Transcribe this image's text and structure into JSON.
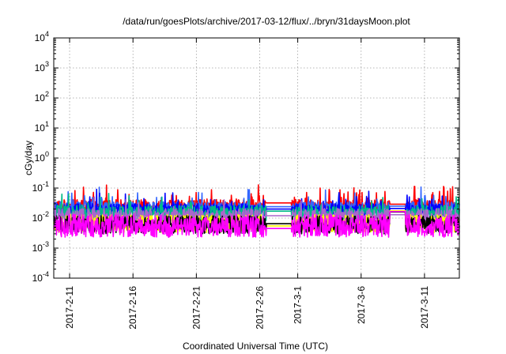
{
  "chart_data": {
    "type": "line",
    "title": "/data/run/goesPlots/archive/2017-03-12/flux/../bryn/31daysMoon.plot",
    "xlabel": "Coordinated Universal Time (UTC)",
    "ylabel": "cGy/day",
    "yscale": "log",
    "grid": true,
    "legend": "none",
    "ylim": [
      0.0001,
      10000
    ],
    "y_ticks": [
      {
        "base": "10",
        "exp": "-4",
        "value": 0.0001
      },
      {
        "base": "10",
        "exp": "-3",
        "value": 0.001
      },
      {
        "base": "10",
        "exp": "-2",
        "value": 0.01
      },
      {
        "base": "10",
        "exp": "-1",
        "value": 0.1
      },
      {
        "base": "10",
        "exp": "0",
        "value": 1
      },
      {
        "base": "10",
        "exp": "1",
        "value": 10
      },
      {
        "base": "10",
        "exp": "2",
        "value": 100
      },
      {
        "base": "10",
        "exp": "3",
        "value": 1000
      },
      {
        "base": "10",
        "exp": "4",
        "value": 10000
      }
    ],
    "xlim": [
      "2017-02-09T18:00",
      "2017-03-13T18:00"
    ],
    "x_ticks": [
      "2017-2-11",
      "2017-2-16",
      "2017-2-21",
      "2017-2-26",
      "2017-3-1",
      "2017-3-6",
      "2017-3-11"
    ],
    "x_tick_dates": [
      "2017-02-11",
      "2017-02-16",
      "2017-02-21",
      "2017-02-26",
      "2017-03-01",
      "2017-03-06",
      "2017-03-11"
    ],
    "series": [
      {
        "color": "#ff0000",
        "baseline": 0.025,
        "noise": 0.22,
        "spikes": 0.06,
        "gaps": [
          {
            "from": "2017-02-26T12:00",
            "to": "2017-02-28T12:00",
            "value": 0.032
          },
          {
            "from": "2017-03-08T06:00",
            "to": "2017-03-09T12:00",
            "value": 0.029
          }
        ]
      },
      {
        "color": "#3366ff",
        "baseline": 0.021,
        "noise": 0.22,
        "spikes": 0.05,
        "gaps": [
          {
            "from": "2017-02-26T12:00",
            "to": "2017-02-28T12:00",
            "value": 0.024
          },
          {
            "from": "2017-03-08T06:00",
            "to": "2017-03-09T12:00",
            "value": 0.025
          }
        ]
      },
      {
        "color": "#0000ff",
        "baseline": 0.019,
        "noise": 0.2,
        "spikes": 0.04,
        "gaps": [
          {
            "from": "2017-02-26T12:00",
            "to": "2017-02-28T12:00",
            "value": 0.02
          },
          {
            "from": "2017-03-08T06:00",
            "to": "2017-03-09T12:00",
            "value": 0.021
          }
        ]
      },
      {
        "color": "#00bb88",
        "baseline": 0.014,
        "noise": 0.28,
        "spikes": 0.03,
        "gaps": [
          {
            "from": "2017-02-26T12:00",
            "to": "2017-02-28T12:00",
            "value": 0.017
          },
          {
            "from": "2017-03-08T06:00",
            "to": "2017-03-09T12:00",
            "value": 0.016
          }
        ]
      },
      {
        "color": "#aa66cc",
        "baseline": 0.011,
        "noise": 0.28,
        "spikes": 0.02,
        "gaps": [
          {
            "from": "2017-02-26T12:00",
            "to": "2017-02-28T12:00",
            "value": 0.012
          },
          {
            "from": "2017-03-08T06:00",
            "to": "2017-03-09T12:00",
            "value": 0.013
          }
        ]
      },
      {
        "color": "#ffff00",
        "baseline": 0.0065,
        "noise": 0.3,
        "spikes": 0.0,
        "gaps": [
          {
            "from": "2017-02-26T12:00",
            "to": "2017-02-28T12:00",
            "value": 0.0055
          },
          {
            "from": "2017-03-08T06:00",
            "to": "2017-03-09T12:00",
            "value": 0.0175
          }
        ]
      },
      {
        "color": "#000000",
        "baseline": 0.006,
        "noise": 0.3,
        "spikes": 0.0,
        "gaps": [
          {
            "from": "2017-02-26T12:00",
            "to": "2017-02-28T12:00",
            "value": 0.0065
          },
          {
            "from": "2017-03-08T06:00",
            "to": "2017-03-09T12:00",
            "value": 0.016
          }
        ]
      },
      {
        "color": "#ff00ff",
        "baseline": 0.0055,
        "noise": 0.38,
        "spikes": 0.0,
        "gaps": [
          {
            "from": "2017-02-26T12:00",
            "to": "2017-02-28T12:00",
            "value": 0.0045
          },
          {
            "from": "2017-03-08T06:00",
            "to": "2017-03-09T12:00",
            "value": 0.0165
          }
        ]
      }
    ]
  }
}
